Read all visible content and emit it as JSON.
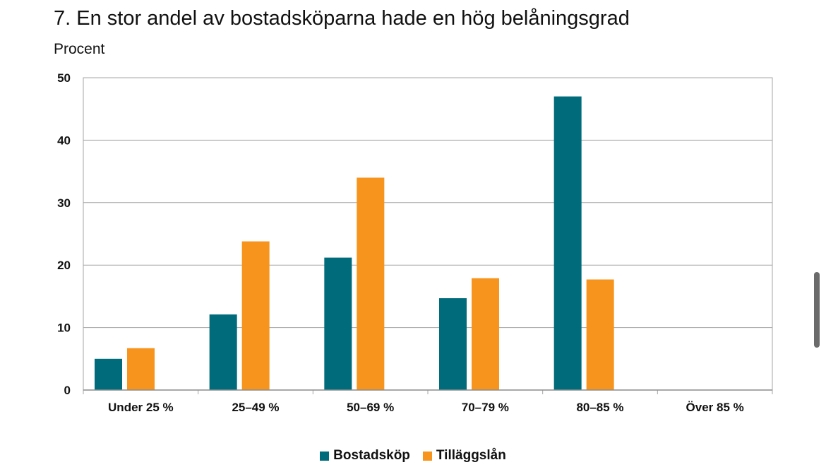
{
  "chart_data": {
    "type": "bar",
    "title": "7. En stor andel av bostadsköparna hade en hög belåningsgrad",
    "subtitle": "Procent",
    "categories": [
      "Under 25 %",
      "25–49 %",
      "50–69 %",
      "70–79 %",
      "80–85 %",
      "Över 85 %"
    ],
    "series": [
      {
        "name": "Bostadsköp",
        "color": "#006b7a",
        "values": [
          5,
          12.1,
          21.2,
          14.7,
          47,
          0
        ]
      },
      {
        "name": "Tilläggslån",
        "color": "#f7941d",
        "values": [
          6.7,
          23.8,
          34,
          17.9,
          17.7,
          0
        ]
      }
    ],
    "ylim": [
      0,
      50
    ],
    "yticks": [
      0,
      10,
      20,
      30,
      40,
      50
    ],
    "grid": true,
    "legend_position": "bottom-center"
  }
}
